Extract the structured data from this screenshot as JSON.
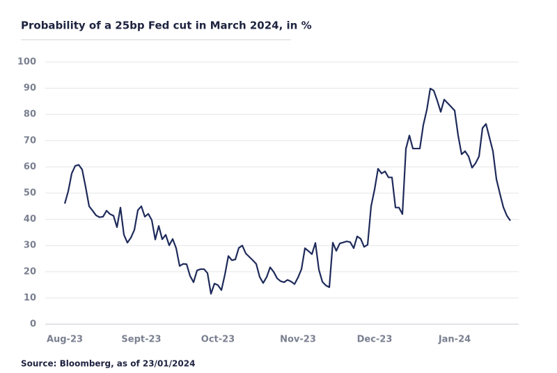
{
  "chart_data": {
    "type": "line",
    "title": "Probability of a 25bp Fed cut in March 2024, in %",
    "source": "Source: Bloomberg, as of 23/01/2024",
    "categories": [
      "Aug-23",
      null,
      null,
      null,
      null,
      null,
      null,
      null,
      null,
      null,
      null,
      null,
      null,
      null,
      null,
      null,
      null,
      null,
      null,
      null,
      null,
      null,
      "Sept-23",
      null,
      null,
      null,
      null,
      null,
      null,
      null,
      null,
      null,
      null,
      null,
      null,
      null,
      null,
      null,
      null,
      null,
      null,
      null,
      null,
      null,
      "Oct-23",
      null,
      null,
      null,
      null,
      null,
      null,
      null,
      null,
      null,
      null,
      null,
      null,
      null,
      null,
      null,
      null,
      null,
      null,
      null,
      null,
      null,
      null,
      "Nov-23",
      null,
      null,
      null,
      null,
      null,
      null,
      null,
      null,
      null,
      null,
      null,
      null,
      null,
      null,
      null,
      null,
      null,
      null,
      null,
      null,
      null,
      "Dec-23",
      null,
      null,
      null,
      null,
      null,
      null,
      null,
      null,
      null,
      null,
      null,
      null,
      null,
      null,
      null,
      null,
      null,
      null,
      null,
      null,
      null,
      null,
      "Jan-24",
      null,
      null,
      null,
      null,
      null,
      null,
      null,
      null,
      null,
      null,
      null,
      null,
      null,
      null,
      null,
      null
    ],
    "values": [
      46,
      50.7,
      57.5,
      60.4,
      60.8,
      59,
      52.3,
      45,
      43.3,
      41.5,
      40.8,
      41,
      43.3,
      42,
      41.4,
      37,
      44.5,
      34.1,
      31.1,
      33,
      36,
      43.5,
      45,
      41,
      42.1,
      39.7,
      32.3,
      37.5,
      32.4,
      34.1,
      30.1,
      32.5,
      29,
      22.2,
      23,
      22.9,
      18.4,
      16,
      20.5,
      21,
      21,
      19.5,
      11.6,
      15.5,
      14.9,
      13,
      18.9,
      26,
      24.4,
      24.7,
      29.1,
      30,
      27,
      25.7,
      24.4,
      23,
      18,
      15.7,
      18,
      21.7,
      20,
      17.5,
      16.4,
      16,
      16.9,
      16.3,
      15.3,
      17.8,
      21,
      29,
      27.9,
      26.7,
      31,
      20.8,
      16.2,
      14.8,
      14.1,
      31.1,
      28,
      30.8,
      31.2,
      31.6,
      31.3,
      29,
      33.5,
      32.6,
      29.5,
      30.3,
      45,
      51.4,
      59.3,
      57.5,
      58.3,
      56,
      56,
      44.5,
      44.5,
      42,
      66.9,
      72,
      67,
      67,
      67,
      76,
      81.7,
      89.9,
      89.1,
      85.3,
      81,
      85.7,
      84.3,
      82.9,
      81.5,
      72,
      64.8,
      66,
      64,
      59.7,
      61.4,
      64,
      74.8,
      76.4,
      71.2,
      66,
      55.3,
      49.8,
      44.6,
      41.4,
      39.5
    ],
    "color": "#1e2a5a",
    "ylim": [
      0,
      100
    ],
    "yticks": [
      0,
      10,
      20,
      30,
      40,
      50,
      60,
      70,
      80,
      90,
      100
    ],
    "grid": true
  }
}
